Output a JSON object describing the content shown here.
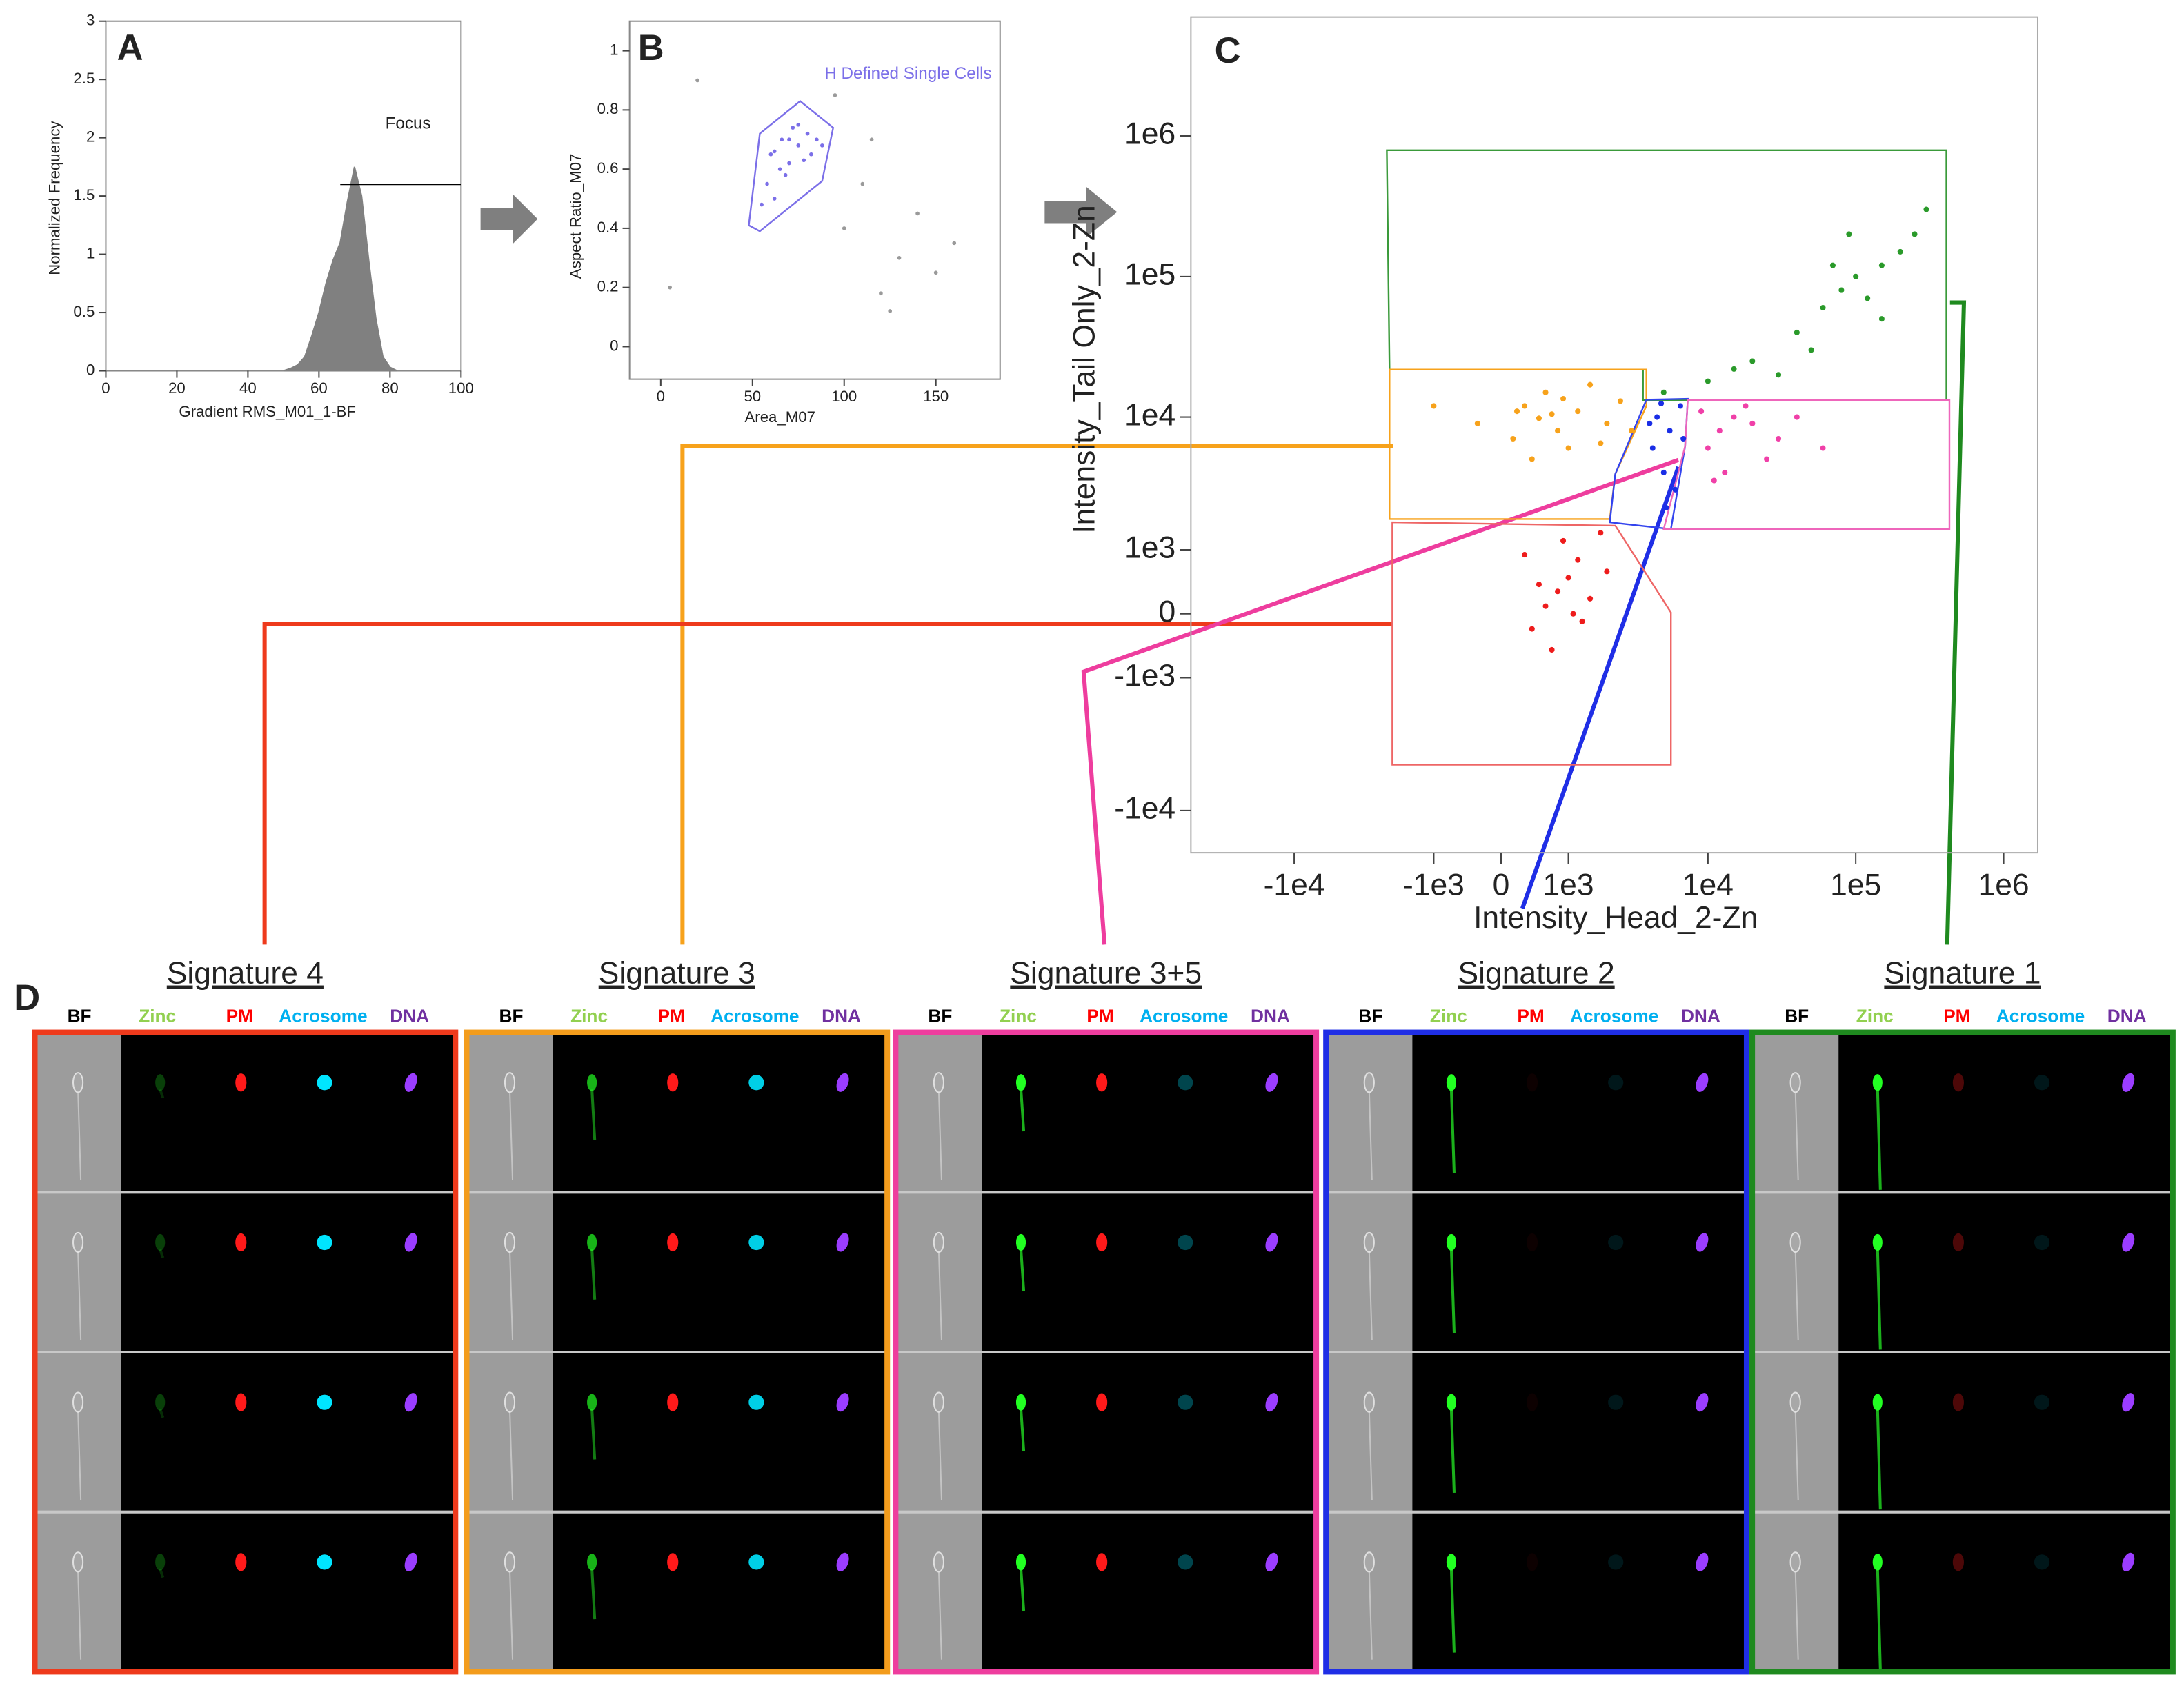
{
  "chart_data": [
    {
      "type": "area",
      "panel_label": "A",
      "x_label": "Gradient RMS_M01_1-BF",
      "y_label": "Normalized Frequency",
      "color": "#808080",
      "x": [
        50,
        52,
        54,
        56,
        58,
        60,
        62,
        64,
        66,
        68,
        70,
        72,
        74,
        76,
        78,
        80,
        82
      ],
      "values": [
        0,
        0.02,
        0.05,
        0.12,
        0.3,
        0.5,
        0.75,
        0.95,
        1.1,
        1.45,
        1.75,
        1.5,
        0.95,
        0.45,
        0.12,
        0.03,
        0
      ],
      "xlim": [
        0,
        100
      ],
      "ylim": [
        0,
        3
      ],
      "xticks": [
        0,
        20,
        40,
        60,
        80,
        100
      ],
      "yticks": [
        0,
        0.5,
        1,
        1.5,
        2,
        2.5,
        3
      ],
      "gate": {
        "label": "Focus",
        "x": [
          66,
          100
        ],
        "y": 1.6
      }
    },
    {
      "type": "scatter",
      "panel_label": "B",
      "x_label": "Area_M07",
      "y_label": "Aspect Ratio_M07",
      "xlim": [
        -17,
        185
      ],
      "ylim": [
        -0.11,
        1.1
      ],
      "xticks": [
        0,
        50,
        100,
        150
      ],
      "yticks": [
        0,
        0.2,
        0.4,
        0.6,
        0.8,
        1
      ],
      "series": [
        {
          "color": "#7b6fe8",
          "x": [
            60,
            70,
            75,
            65,
            80,
            58,
            70,
            85,
            62,
            75,
            68,
            55,
            88,
            62,
            78,
            72,
            66,
            82
          ],
          "values": [
            0.65,
            0.7,
            0.68,
            0.6,
            0.72,
            0.55,
            0.62,
            0.7,
            0.5,
            0.75,
            0.58,
            0.48,
            0.68,
            0.66,
            0.63,
            0.74,
            0.7,
            0.65
          ]
        },
        {
          "color": "#9a9a9a",
          "x": [
            110,
            130,
            150,
            120,
            100,
            140,
            5,
            20,
            160,
            115,
            125,
            95
          ],
          "values": [
            0.55,
            0.3,
            0.25,
            0.18,
            0.4,
            0.45,
            0.2,
            0.9,
            0.35,
            0.7,
            0.12,
            0.85
          ]
        }
      ],
      "gates": [
        {
          "label": "H Defined Single Cells",
          "color": "#7b6fe8",
          "polygon": [
            [
              48,
              0.41
            ],
            [
              54,
              0.72
            ],
            [
              76,
              0.83
            ],
            [
              94,
              0.74
            ],
            [
              88,
              0.56
            ],
            [
              54,
              0.39
            ]
          ]
        }
      ]
    },
    {
      "type": "scatter",
      "panel_label": "C",
      "x_label": "Intensity_Head_2-Zn",
      "y_label": "Intensity_Tail Only_2-Zn",
      "xscale": "biexponential",
      "yscale": "biexponential",
      "xlim": [
        -50000,
        1700000
      ],
      "ylim": [
        -20000,
        7000000
      ],
      "xticks": [
        {
          "value": -10000,
          "label": "-1e4"
        },
        {
          "value": -1000,
          "label": "-1e3"
        },
        0,
        {
          "value": 1000,
          "label": "1e3"
        },
        {
          "value": 10000,
          "label": "1e4"
        },
        {
          "value": 100000,
          "label": "1e5"
        },
        {
          "value": 1000000,
          "label": "1e6"
        }
      ],
      "yticks": [
        {
          "value": -10000,
          "label": "-1e4"
        },
        {
          "value": -1000,
          "label": "-1e3"
        },
        0,
        {
          "value": 1000,
          "label": "1e3"
        },
        {
          "value": 10000,
          "label": "1e4"
        },
        {
          "value": 100000,
          "label": "1e5"
        },
        {
          "value": 1000000,
          "label": "1e6"
        }
      ],
      "series": [
        {
          "color": "#f7a21b",
          "x": [
            500,
            300,
            800,
            1200,
            150,
            2000,
            600,
            1000,
            400,
            2500,
            -300,
            1500,
            700,
            900,
            200,
            1800,
            -1000,
            3000
          ],
          "values": [
            9800,
            12000,
            8000,
            11000,
            7000,
            9000,
            15000,
            6000,
            5000,
            13000,
            9000,
            17000,
            10500,
            13500,
            11000,
            6500,
            12000,
            8000
          ]
        },
        {
          "color": "#ee1c1c",
          "x": [
            800,
            1000,
            600,
            1200,
            400,
            1500,
            900,
            2000,
            700,
            1100,
            300,
            1800,
            500,
            1300
          ],
          "values": [
            300,
            500,
            100,
            800,
            -200,
            200,
            1200,
            600,
            -500,
            0,
            900,
            1400,
            400,
            -100
          ]
        },
        {
          "color": "#1a2ee6",
          "x": [
            4500,
            5500,
            6500,
            4200,
            5000,
            6000,
            4800,
            6800,
            5200,
            4000
          ],
          "values": [
            10000,
            8000,
            12000,
            6000,
            4000,
            3000,
            12500,
            7000,
            2200,
            9000
          ]
        },
        {
          "color": "#f040a8",
          "x": [
            12000,
            15000,
            10000,
            20000,
            25000,
            9000,
            30000,
            13000,
            40000,
            18000,
            11000,
            60000
          ],
          "values": [
            8000,
            10000,
            6000,
            9000,
            5000,
            11000,
            7000,
            4000,
            10000,
            12000,
            3500,
            6000
          ]
        },
        {
          "color": "#2a9a2a",
          "x": [
            5000,
            10000,
            20000,
            40000,
            60000,
            80000,
            100000,
            150000,
            200000,
            120000,
            70000,
            30000,
            250000,
            90000,
            50000,
            300000,
            150000,
            15000
          ],
          "values": [
            15000,
            18000,
            25000,
            40000,
            60000,
            80000,
            100000,
            120000,
            150000,
            70000,
            120000,
            20000,
            200000,
            200000,
            30000,
            300000,
            50000,
            22000
          ]
        }
      ],
      "gates": [
        {
          "color": "#3a9a3a",
          "polygon": [
            [
              -2300,
              790000
            ],
            [
              410000,
              790000
            ],
            [
              410000,
              13200
            ],
            [
              3600,
              13200
            ],
            [
              3600,
              21800
            ],
            [
              -2200,
              21800
            ]
          ]
        },
        {
          "color": "#f7a21b",
          "polygon": [
            [
              -2200,
              21800
            ],
            [
              3800,
              21800
            ],
            [
              3800,
              12000
            ],
            [
              2300,
              3900
            ],
            [
              2100,
              1800
            ],
            [
              -2200,
              1800
            ]
          ]
        },
        {
          "color": "#3344ee",
          "polygon": [
            [
              3800,
              13300
            ],
            [
              7300,
              13500
            ],
            [
              7000,
              6200
            ],
            [
              5600,
              1500
            ],
            [
              2100,
              1700
            ],
            [
              2300,
              3900
            ]
          ]
        },
        {
          "color": "#ee66bb",
          "polygon": [
            [
              7300,
              13200
            ],
            [
              430000,
              13200
            ],
            [
              430000,
              1500
            ],
            [
              5000,
              1500
            ],
            [
              7000,
              6200
            ]
          ]
        },
        {
          "color": "#ee6666",
          "polygon": [
            [
              -2100,
              1700
            ],
            [
              2300,
              1600
            ],
            [
              5600,
              18
            ],
            [
              5600,
              -4700
            ],
            [
              -2100,
              -4700
            ]
          ]
        }
      ]
    }
  ],
  "panel_d": {
    "panel_label": "D",
    "channels": [
      {
        "name": "BF",
        "color": "#000000"
      },
      {
        "name": "Zinc",
        "color": "#92d050"
      },
      {
        "name": "PM",
        "color": "#ff0000"
      },
      {
        "name": "Acrosome",
        "color": "#00b0f0"
      },
      {
        "name": "DNA",
        "color": "#7030a0"
      }
    ],
    "signatures": [
      {
        "title": "Signature 4",
        "color": "#ee3a1c"
      },
      {
        "title": "Signature 3",
        "color": "#f39c1c"
      },
      {
        "title": "Signature 3+5",
        "color": "#ee3d9e"
      },
      {
        "title": "Signature 2",
        "color": "#1f2ee6"
      },
      {
        "title": "Signature 1",
        "color": "#1f8a1f"
      }
    ]
  }
}
